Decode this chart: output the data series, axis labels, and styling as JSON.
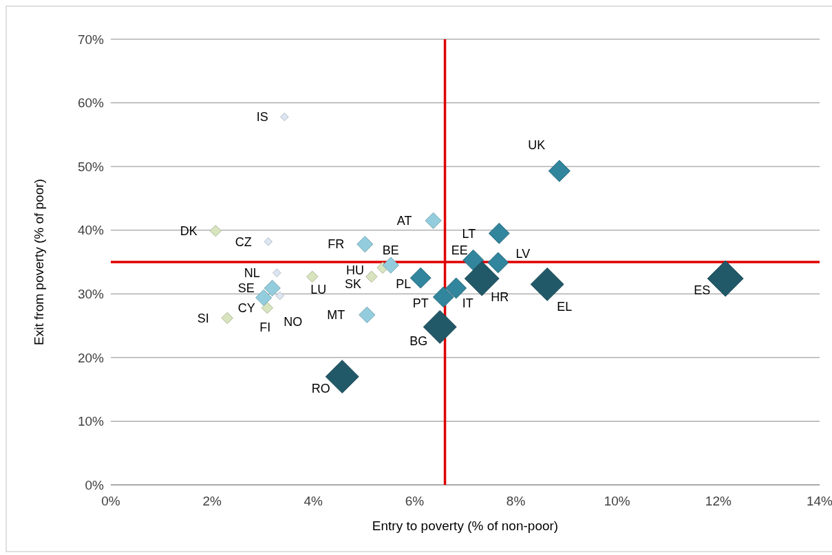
{
  "chart_data": {
    "type": "bubble",
    "xlabel": "Entry to poverty (% of non-poor)",
    "ylabel": "Exit from poverty (% of poor)",
    "xlim": [
      0,
      14
    ],
    "ylim": [
      0,
      70
    ],
    "xticks": [
      {
        "value": 0,
        "label": "0%"
      },
      {
        "value": 2,
        "label": "2%"
      },
      {
        "value": 4,
        "label": "4%"
      },
      {
        "value": 6,
        "label": "6%"
      },
      {
        "value": 8,
        "label": "8%"
      },
      {
        "value": 10,
        "label": "10%"
      },
      {
        "value": 12,
        "label": "12%"
      },
      {
        "value": 14,
        "label": "14%"
      }
    ],
    "yticks": [
      {
        "value": 0,
        "label": "0%"
      },
      {
        "value": 10,
        "label": "10%"
      },
      {
        "value": 20,
        "label": "20%"
      },
      {
        "value": 30,
        "label": "30%"
      },
      {
        "value": 40,
        "label": "40%"
      },
      {
        "value": 50,
        "label": "50%"
      },
      {
        "value": 60,
        "label": "60%"
      },
      {
        "value": 70,
        "label": "70%"
      }
    ],
    "grid": "y",
    "marker": "diamond",
    "series": [
      {
        "color": "#dce6f2",
        "x": [
          3.43,
          3.11,
          3.28,
          3.34
        ],
        "values": [
          57.8,
          38.2,
          33.3,
          29.7
        ],
        "sizes": [
          0.05,
          0.05,
          0.05,
          0.05
        ]
      },
      {
        "color": "#d7e4bd",
        "x": [
          2.07,
          3.09,
          2.3,
          3.98,
          5.37,
          5.15
        ],
        "values": [
          39.9,
          27.8,
          26.2,
          32.7,
          34.1,
          32.7
        ],
        "sizes": [
          0.1,
          0.1,
          0.1,
          0.1,
          0.1,
          0.1
        ]
      },
      {
        "color": "#93cddd",
        "x": [
          3.19,
          3.02,
          5.53,
          5.02,
          5.06,
          6.37
        ],
        "values": [
          30.9,
          29.4,
          34.5,
          37.8,
          26.7,
          41.5
        ],
        "sizes": [
          0.2,
          0.2,
          0.2,
          0.2,
          0.2,
          0.2
        ]
      },
      {
        "color": "#31859c",
        "x": [
          6.12,
          6.57,
          6.82,
          7.16,
          7.67,
          7.65,
          8.86
        ],
        "values": [
          32.5,
          29.5,
          30.9,
          35.3,
          39.5,
          34.9,
          49.3
        ],
        "sizes": [
          0.33,
          0.33,
          0.33,
          0.33,
          0.33,
          0.33,
          0.36
        ]
      },
      {
        "color": "#215968",
        "x": [
          7.33,
          6.5,
          4.57,
          8.62,
          12.14
        ],
        "values": [
          32.4,
          24.8,
          17.0,
          31.5,
          32.4
        ],
        "sizes": [
          0.92,
          0.85,
          0.85,
          0.85,
          1
        ]
      }
    ],
    "ref_lines": [
      {
        "axis": "y",
        "value": 35,
        "color": "#e00000"
      },
      {
        "axis": "x",
        "value": 6.6,
        "color": "#e00000"
      }
    ],
    "annotations": [
      {
        "text": "IS",
        "x": 3.43,
        "y": 57.8
      },
      {
        "text": "CZ",
        "x": 3.11,
        "y": 38.2
      },
      {
        "text": "NL",
        "x": 3.28,
        "y": 33.3
      },
      {
        "text": "NO",
        "x": 3.34,
        "y": 29.7
      },
      {
        "text": "DK",
        "x": 2.07,
        "y": 39.9
      },
      {
        "text": "CY",
        "x": 3.09,
        "y": 27.8
      },
      {
        "text": "SI",
        "x": 2.3,
        "y": 26.2
      },
      {
        "text": "LU",
        "x": 3.98,
        "y": 32.7
      },
      {
        "text": "HU",
        "x": 5.37,
        "y": 34.1
      },
      {
        "text": "SK",
        "x": 5.15,
        "y": 32.7
      },
      {
        "text": "SE",
        "x": 3.19,
        "y": 30.9
      },
      {
        "text": "FI",
        "x": 3.02,
        "y": 29.4
      },
      {
        "text": "BE",
        "x": 5.53,
        "y": 34.5
      },
      {
        "text": "FR",
        "x": 5.02,
        "y": 37.8
      },
      {
        "text": "MT",
        "x": 5.06,
        "y": 26.7
      },
      {
        "text": "AT",
        "x": 6.37,
        "y": 41.5
      },
      {
        "text": "PL",
        "x": 6.12,
        "y": 32.5
      },
      {
        "text": "PT",
        "x": 6.57,
        "y": 29.5
      },
      {
        "text": "IT",
        "x": 6.82,
        "y": 30.9
      },
      {
        "text": "EE",
        "x": 7.16,
        "y": 35.3
      },
      {
        "text": "LT",
        "x": 7.67,
        "y": 39.5
      },
      {
        "text": "LV",
        "x": 7.65,
        "y": 34.9
      },
      {
        "text": "UK",
        "x": 8.86,
        "y": 49.3
      },
      {
        "text": "HR",
        "x": 7.33,
        "y": 32.4
      },
      {
        "text": "BG",
        "x": 6.5,
        "y": 24.8
      },
      {
        "text": "RO",
        "x": 4.57,
        "y": 17.0
      },
      {
        "text": "EL",
        "x": 8.62,
        "y": 31.5
      },
      {
        "text": "ES",
        "x": 12.14,
        "y": 32.4
      }
    ]
  }
}
